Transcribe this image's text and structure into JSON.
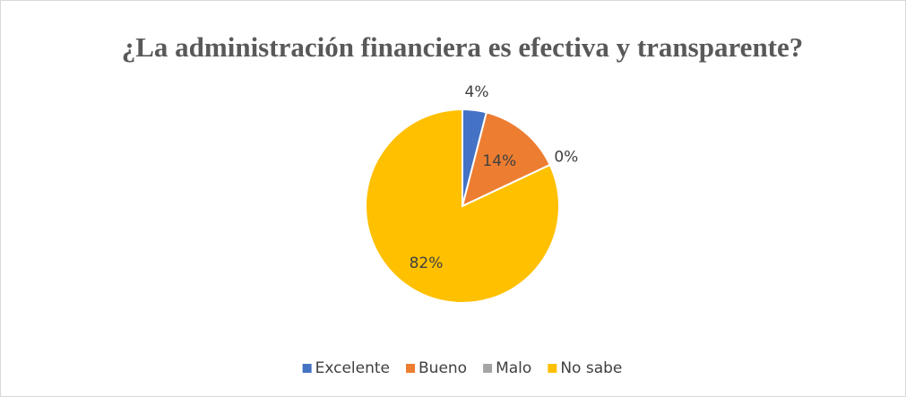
{
  "chart_data": {
    "type": "pie",
    "title": "¿La administración financiera es efectiva y transparente?",
    "categories": [
      "Excelente",
      "Bueno",
      "Malo",
      "No sabe"
    ],
    "values": [
      4,
      14,
      0,
      82
    ],
    "value_labels": [
      "4%",
      "14%",
      "0%",
      "82%"
    ],
    "colors": [
      "#4472c4",
      "#ed7d31",
      "#a5a5a5",
      "#ffc000"
    ],
    "legend": "bottom"
  }
}
